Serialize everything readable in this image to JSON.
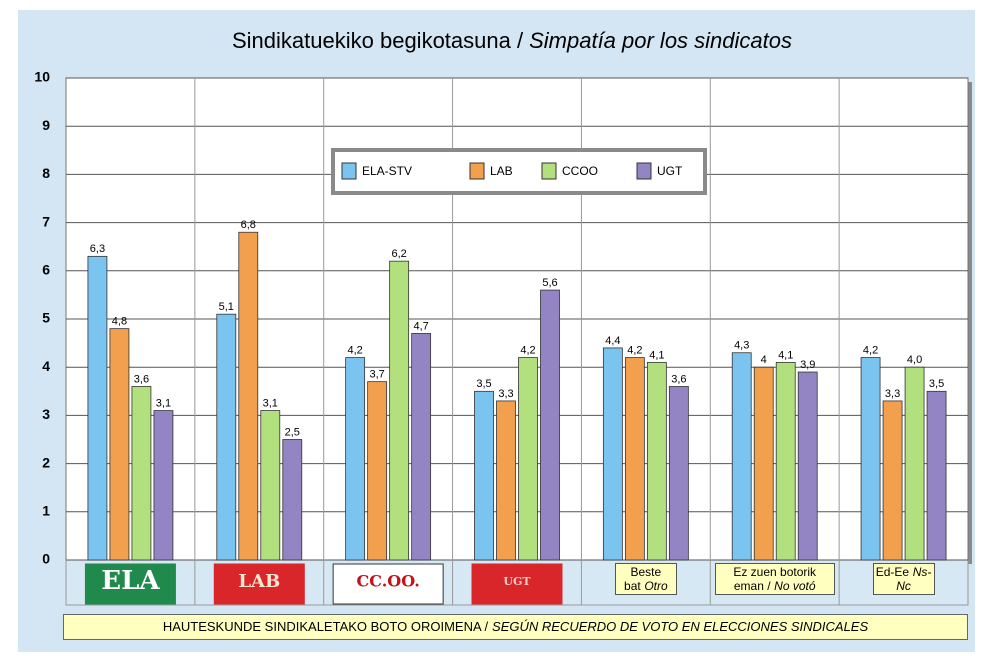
{
  "chart_data": {
    "type": "bar",
    "title": "Sindikatuekiko begikotasuna /",
    "title_italic": "Simpatía por los sindicatos",
    "footer": "HAUTESKUNDE SINDIKALETAKO BOTO OROIMENA /",
    "footer_italic": "SEGÚN RECUERDO DE VOTO EN ELECCIONES SINDICALES",
    "categories": [
      "ELA",
      "LAB",
      "CC.OO.",
      "UGT",
      {
        "label": "Beste bat",
        "label_italic": "Otro"
      },
      {
        "label": "Ez zuen botorik eman /",
        "label_italic": "No votó"
      },
      {
        "label": "Ed-Ee",
        "label_italic": "Ns-Nc"
      }
    ],
    "series": [
      {
        "name": "ELA-STV",
        "color": "#7cc4f0",
        "values": [
          6.3,
          5.1,
          4.2,
          3.5,
          4.4,
          4.3,
          4.2
        ],
        "value_labels": [
          "6,3",
          "5,1",
          "4,2",
          "3,5",
          "4,4",
          "4,3",
          "4,2"
        ]
      },
      {
        "name": "LAB",
        "color": "#f2a04e",
        "values": [
          4.8,
          6.8,
          3.7,
          3.3,
          4.2,
          4,
          3.3
        ],
        "value_labels": [
          "4,8",
          "6,8",
          "3,7",
          "3,3",
          "4,2",
          "4",
          "3,3"
        ]
      },
      {
        "name": "CCOO",
        "color": "#b2e07e",
        "values": [
          3.6,
          3.1,
          6.2,
          4.2,
          4.1,
          4.1,
          4.0
        ],
        "value_labels": [
          "3,6",
          "3,1",
          "6,2",
          "4,2",
          "4,1",
          "4,1",
          "4,0"
        ]
      },
      {
        "name": "UGT",
        "color": "#9384c4",
        "values": [
          3.1,
          2.5,
          4.7,
          5.6,
          3.6,
          3.9,
          3.5
        ],
        "value_labels": [
          "3,1",
          "2,5",
          "4,7",
          "5,6",
          "3,6",
          "3,9",
          "3,5"
        ]
      }
    ],
    "ylim": [
      0,
      10
    ],
    "yticks": [
      0,
      1,
      2,
      3,
      4,
      5,
      6,
      7,
      8,
      9,
      10
    ],
    "grid": true,
    "legend": "top"
  }
}
